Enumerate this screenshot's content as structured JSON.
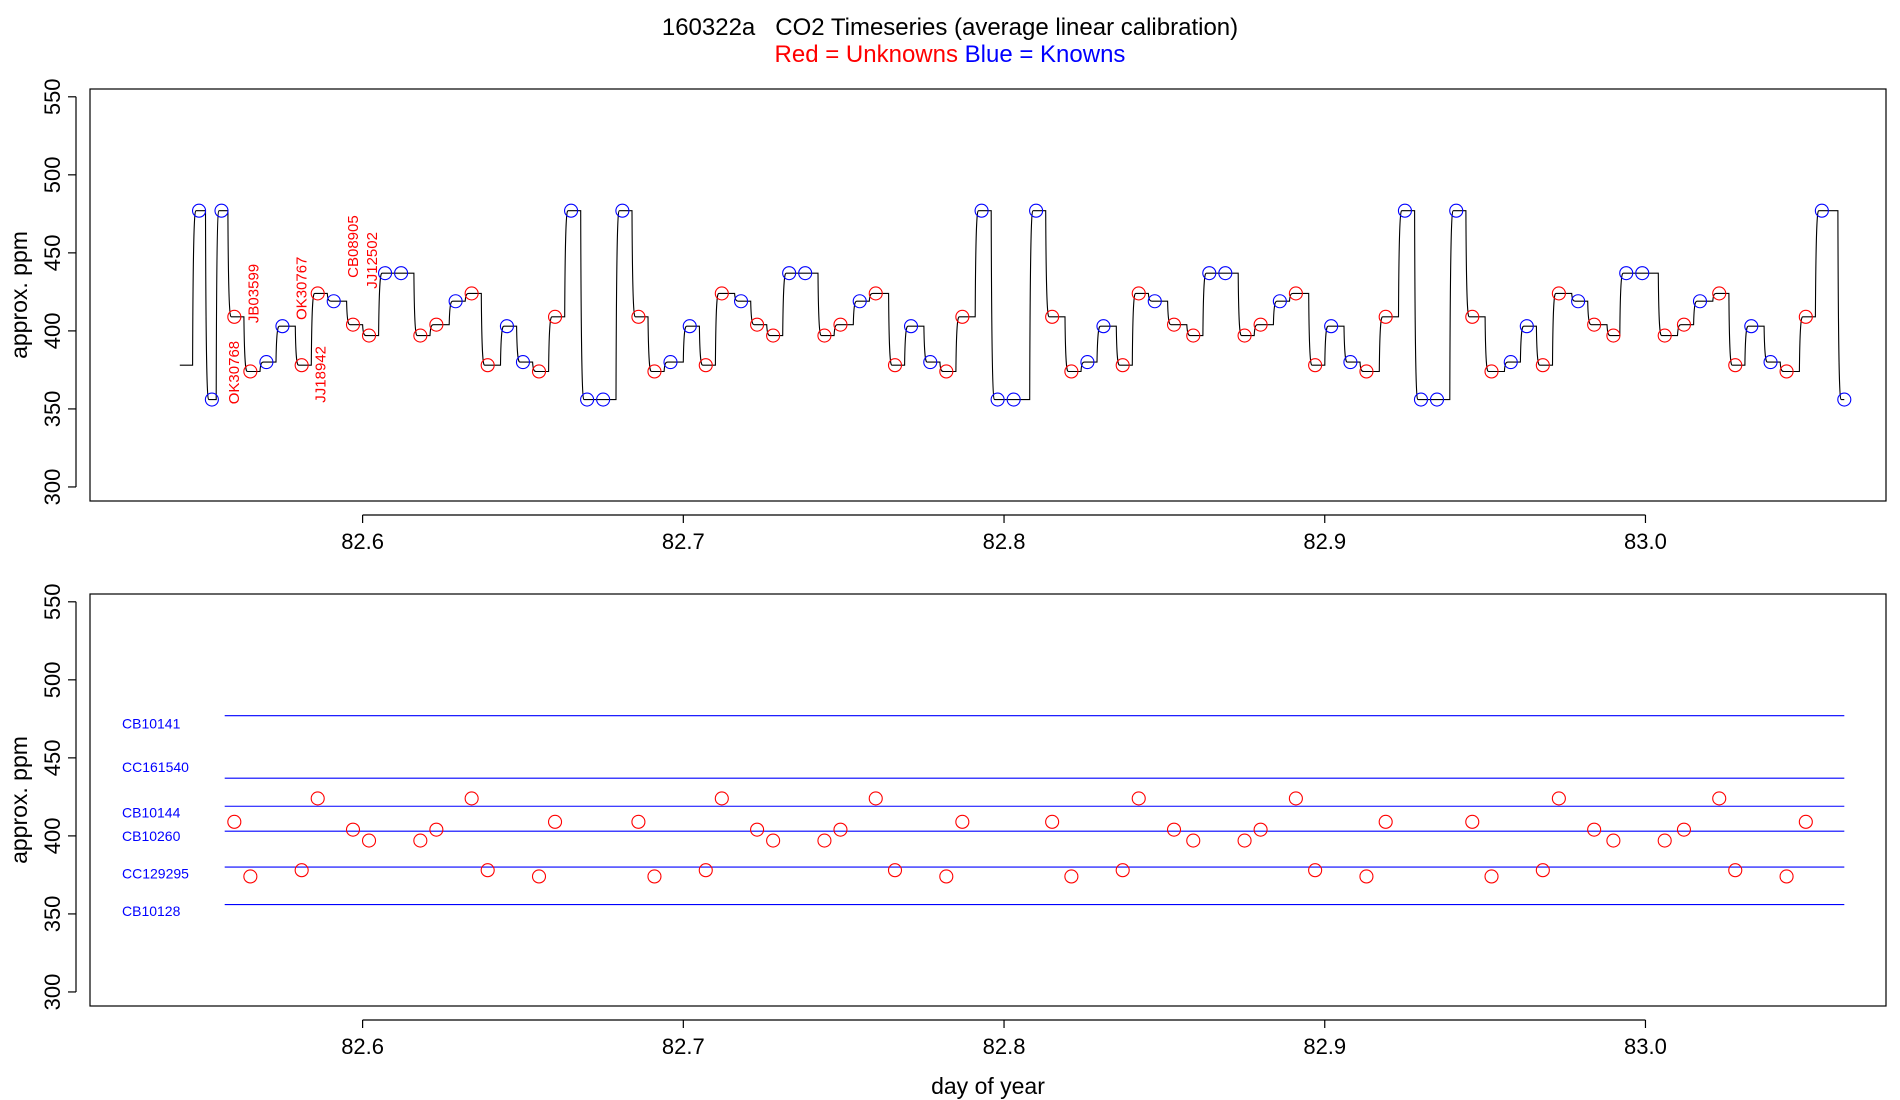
{
  "title": "160322a   CO2 Timeseries (average linear calibration)",
  "subtitle": {
    "red_text": "Red = Unknowns",
    "blue_text": "Blue = Knowns"
  },
  "colors": {
    "unknown": "#ff0000",
    "known": "#0000ff",
    "trace": "#000000",
    "ref_line": "#0000ff"
  },
  "chart_data": [
    {
      "type": "line",
      "panel": "top",
      "xlabel": "",
      "ylabel": "approx. ppm",
      "xlim": [
        82.515,
        83.075
      ],
      "ylim": [
        291,
        555
      ],
      "xticks": [
        82.6,
        82.7,
        82.8,
        82.9,
        83.0
      ],
      "xtick_labels": [
        "82.6",
        "82.7",
        "82.8",
        "82.9",
        "83.0"
      ],
      "yticks": [
        300,
        350,
        400,
        450,
        500,
        550
      ],
      "ytick_labels": [
        "300",
        "350",
        "400",
        "450",
        "500",
        "550"
      ],
      "trace_start": {
        "x": 82.543,
        "y": 378
      },
      "knowns": [
        {
          "x": 82.549,
          "y": 477
        },
        {
          "x": 82.553,
          "y": 356
        },
        {
          "x": 82.556,
          "y": 477
        },
        {
          "x": 82.57,
          "y": 380
        },
        {
          "x": 82.575,
          "y": 403
        },
        {
          "x": 82.591,
          "y": 419
        },
        {
          "x": 82.607,
          "y": 437
        },
        {
          "x": 82.612,
          "y": 437
        },
        {
          "x": 82.629,
          "y": 419
        },
        {
          "x": 82.645,
          "y": 403
        },
        {
          "x": 82.65,
          "y": 380
        },
        {
          "x": 82.665,
          "y": 477
        },
        {
          "x": 82.67,
          "y": 356
        },
        {
          "x": 82.675,
          "y": 356
        },
        {
          "x": 82.681,
          "y": 477
        },
        {
          "x": 82.696,
          "y": 380
        },
        {
          "x": 82.702,
          "y": 403
        },
        {
          "x": 82.718,
          "y": 419
        },
        {
          "x": 82.733,
          "y": 437
        },
        {
          "x": 82.738,
          "y": 437
        },
        {
          "x": 82.755,
          "y": 419
        },
        {
          "x": 82.771,
          "y": 403
        },
        {
          "x": 82.777,
          "y": 380
        },
        {
          "x": 82.793,
          "y": 477
        },
        {
          "x": 82.798,
          "y": 356
        },
        {
          "x": 82.803,
          "y": 356
        },
        {
          "x": 82.81,
          "y": 477
        },
        {
          "x": 82.826,
          "y": 380
        },
        {
          "x": 82.831,
          "y": 403
        },
        {
          "x": 82.847,
          "y": 419
        },
        {
          "x": 82.864,
          "y": 437
        },
        {
          "x": 82.869,
          "y": 437
        },
        {
          "x": 82.886,
          "y": 419
        },
        {
          "x": 82.902,
          "y": 403
        },
        {
          "x": 82.908,
          "y": 380
        },
        {
          "x": 82.925,
          "y": 477
        },
        {
          "x": 82.93,
          "y": 356
        },
        {
          "x": 82.935,
          "y": 356
        },
        {
          "x": 82.941,
          "y": 477
        },
        {
          "x": 82.958,
          "y": 380
        },
        {
          "x": 82.963,
          "y": 403
        },
        {
          "x": 82.979,
          "y": 419
        },
        {
          "x": 82.994,
          "y": 437
        },
        {
          "x": 82.999,
          "y": 437
        },
        {
          "x": 83.017,
          "y": 419
        },
        {
          "x": 83.033,
          "y": 403
        },
        {
          "x": 83.039,
          "y": 380
        },
        {
          "x": 83.055,
          "y": 477
        },
        {
          "x": 83.062,
          "y": 356
        }
      ],
      "unknowns": [
        {
          "x": 82.56,
          "y": 409
        },
        {
          "x": 82.565,
          "y": 374
        },
        {
          "x": 82.581,
          "y": 378
        },
        {
          "x": 82.586,
          "y": 424
        },
        {
          "x": 82.597,
          "y": 404
        },
        {
          "x": 82.602,
          "y": 397
        },
        {
          "x": 82.618,
          "y": 397
        },
        {
          "x": 82.623,
          "y": 404
        },
        {
          "x": 82.634,
          "y": 424
        },
        {
          "x": 82.639,
          "y": 378
        },
        {
          "x": 82.655,
          "y": 374
        },
        {
          "x": 82.66,
          "y": 409
        },
        {
          "x": 82.686,
          "y": 409
        },
        {
          "x": 82.691,
          "y": 374
        },
        {
          "x": 82.707,
          "y": 378
        },
        {
          "x": 82.712,
          "y": 424
        },
        {
          "x": 82.723,
          "y": 404
        },
        {
          "x": 82.728,
          "y": 397
        },
        {
          "x": 82.744,
          "y": 397
        },
        {
          "x": 82.749,
          "y": 404
        },
        {
          "x": 82.76,
          "y": 424
        },
        {
          "x": 82.766,
          "y": 378
        },
        {
          "x": 82.782,
          "y": 374
        },
        {
          "x": 82.787,
          "y": 409
        },
        {
          "x": 82.815,
          "y": 409
        },
        {
          "x": 82.821,
          "y": 374
        },
        {
          "x": 82.837,
          "y": 378
        },
        {
          "x": 82.842,
          "y": 424
        },
        {
          "x": 82.853,
          "y": 404
        },
        {
          "x": 82.859,
          "y": 397
        },
        {
          "x": 82.875,
          "y": 397
        },
        {
          "x": 82.88,
          "y": 404
        },
        {
          "x": 82.891,
          "y": 424
        },
        {
          "x": 82.897,
          "y": 378
        },
        {
          "x": 82.913,
          "y": 374
        },
        {
          "x": 82.919,
          "y": 409
        },
        {
          "x": 82.946,
          "y": 409
        },
        {
          "x": 82.952,
          "y": 374
        },
        {
          "x": 82.968,
          "y": 378
        },
        {
          "x": 82.973,
          "y": 424
        },
        {
          "x": 82.984,
          "y": 404
        },
        {
          "x": 82.99,
          "y": 397
        },
        {
          "x": 83.006,
          "y": 397
        },
        {
          "x": 83.012,
          "y": 404
        },
        {
          "x": 83.023,
          "y": 424
        },
        {
          "x": 83.028,
          "y": 378
        },
        {
          "x": 83.044,
          "y": 374
        },
        {
          "x": 83.05,
          "y": 409
        }
      ],
      "annotations": [
        {
          "text": "OK30768",
          "x": 82.5615,
          "y": 353
        },
        {
          "text": "JB03599",
          "x": 82.5675,
          "y": 405
        },
        {
          "text": "OK30767",
          "x": 82.5825,
          "y": 407
        },
        {
          "text": "JJ18942",
          "x": 82.5885,
          "y": 354
        },
        {
          "text": "CB08905",
          "x": 82.5985,
          "y": 434
        },
        {
          "text": "JJ12502",
          "x": 82.6045,
          "y": 427
        }
      ]
    },
    {
      "type": "scatter",
      "panel": "bottom",
      "xlabel": "day of year",
      "ylabel": "approx. ppm",
      "xlim": [
        82.515,
        83.075
      ],
      "ylim": [
        291,
        555
      ],
      "xticks": [
        82.6,
        82.7,
        82.8,
        82.9,
        83.0
      ],
      "xtick_labels": [
        "82.6",
        "82.7",
        "82.8",
        "82.9",
        "83.0"
      ],
      "yticks": [
        300,
        350,
        400,
        450,
        500,
        550
      ],
      "ytick_labels": [
        "300",
        "350",
        "400",
        "450",
        "500",
        "550"
      ],
      "reference_lines": [
        {
          "name": "CB10141",
          "value": 477,
          "label_y": 472
        },
        {
          "name": "CC161540",
          "value": 437,
          "label_y": 444
        },
        {
          "name": "CB10144",
          "value": 419,
          "label_y": 415
        },
        {
          "name": "CB10260",
          "value": 403,
          "label_y": 400
        },
        {
          "name": "CC129295",
          "value": 380,
          "label_y": 376
        },
        {
          "name": "CB10128",
          "value": 356,
          "label_y": 352
        }
      ],
      "ref_line_x_range": [
        82.557,
        83.062
      ],
      "unknowns_ref": "top.unknowns"
    }
  ]
}
